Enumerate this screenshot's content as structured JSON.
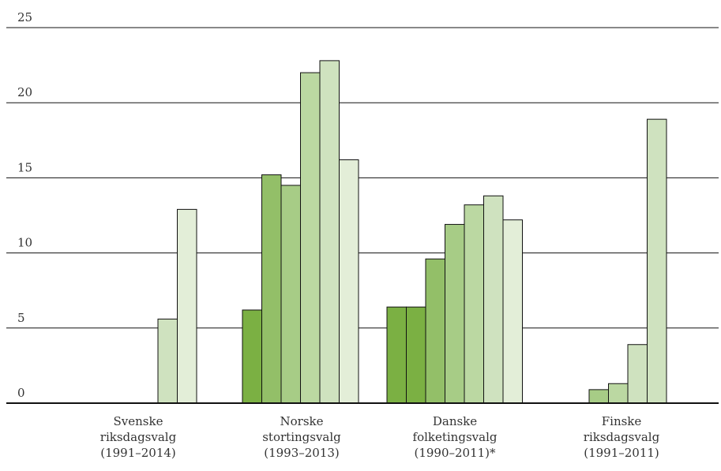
{
  "chart_data": {
    "type": "bar",
    "grid": true,
    "ylim": [
      0,
      25
    ],
    "yticks": [
      "0",
      "5",
      "10",
      "15",
      "20",
      "25"
    ],
    "groups": [
      {
        "label_lines": [
          "Svenske",
          "riksdagsvalg",
          "(1991–2014)"
        ],
        "values": [
          0,
          0,
          0,
          0,
          5.6,
          12.9
        ]
      },
      {
        "label_lines": [
          "Norske",
          "stortingsvalg",
          "(1993–2013)"
        ],
        "values": [
          6.2,
          15.2,
          14.5,
          22.0,
          22.8,
          16.2
        ]
      },
      {
        "label_lines": [
          "Danske",
          "folketingsvalg",
          "(1990–2011)*"
        ],
        "values": [
          6.4,
          6.4,
          9.6,
          11.9,
          13.2,
          13.8,
          12.2
        ]
      },
      {
        "label_lines": [
          "Finske",
          "riksdagsvalg",
          "(1991–2011)"
        ],
        "values": [
          0,
          0,
          0.9,
          1.3,
          3.9,
          18.9
        ]
      }
    ],
    "colors": {
      "Svenske": [
        "#7bb043",
        "#93bf68",
        "#a7cc86",
        "#bbd8a2",
        "#cfe2bf",
        "#e3eed8"
      ],
      "Norske": [
        "#7bb043",
        "#93bf68",
        "#a7cc86",
        "#bbd8a2",
        "#cfe2bf",
        "#e3eed8"
      ],
      "Danske": [
        "#7bb043",
        "#7bb043",
        "#93bf68",
        "#a7cc86",
        "#bbd8a2",
        "#cfe2bf",
        "#e3eed8"
      ],
      "Finske": [
        "#7bb043",
        "#93bf68",
        "#a7cc86",
        "#bbd8a2",
        "#cfe2bf",
        "#cfe2bf"
      ]
    }
  }
}
